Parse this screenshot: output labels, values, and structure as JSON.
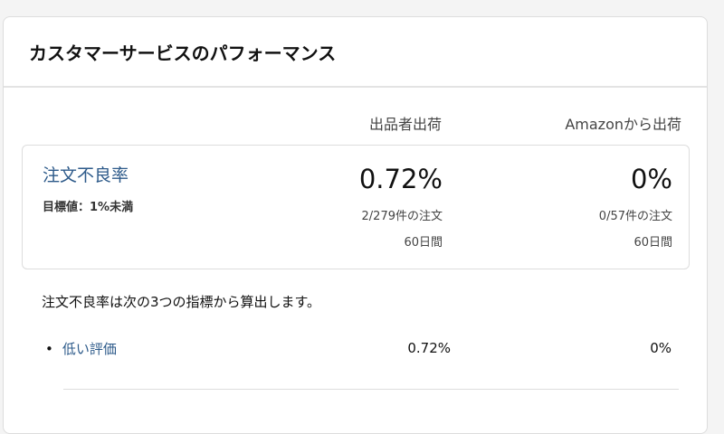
{
  "header": {
    "title": "カスタマーサービスのパフォーマンス"
  },
  "columns": [
    "出品者出荷",
    "Amazonから出荷"
  ],
  "metric": {
    "name": "注文不良率",
    "target": "目標値：1%未満",
    "seller": {
      "rate": "0.72%",
      "orders": "2/279件の注文",
      "period": "60日間"
    },
    "amazon": {
      "rate": "0%",
      "orders": "0/57件の注文",
      "period": "60日間"
    }
  },
  "description": "注文不良率は次の3つの指標から算出します。",
  "sub_metrics": [
    {
      "label": "低い評価",
      "seller": "0.72%",
      "amazon": "0%"
    }
  ]
}
